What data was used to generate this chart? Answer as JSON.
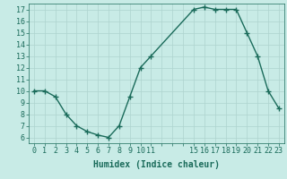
{
  "x": [
    0,
    1,
    2,
    3,
    4,
    5,
    6,
    7,
    8,
    9,
    10,
    11,
    15,
    16,
    17,
    18,
    19,
    20,
    21,
    22,
    23
  ],
  "y": [
    10,
    10,
    9.5,
    8,
    7,
    6.5,
    6.2,
    6,
    7,
    9.5,
    12,
    13,
    17,
    17.2,
    17,
    17,
    17,
    15,
    13,
    10,
    8.5
  ],
  "xlim": [
    -0.5,
    23.5
  ],
  "ylim": [
    5.5,
    17.5
  ],
  "xticks_all": [
    0,
    1,
    2,
    3,
    4,
    5,
    6,
    7,
    8,
    9,
    10,
    11,
    12,
    13,
    14,
    15,
    16,
    17,
    18,
    19,
    20,
    21,
    22,
    23
  ],
  "xtick_labels": [
    "0",
    "1",
    "2",
    "3",
    "4",
    "5",
    "6",
    "7",
    "8",
    "9",
    "10",
    "11",
    "",
    "",
    "",
    "15",
    "16",
    "17",
    "18",
    "19",
    "20",
    "21",
    "22",
    "23"
  ],
  "yticks": [
    6,
    7,
    8,
    9,
    10,
    11,
    12,
    13,
    14,
    15,
    16,
    17
  ],
  "xlabel": "Humidex (Indice chaleur)",
  "line_color": "#1a6b5a",
  "bg_color": "#c8ebe6",
  "grid_color": "#aed4ce",
  "marker": "+",
  "markersize": 4,
  "linewidth": 1.0,
  "xlabel_fontsize": 7,
  "tick_fontsize": 6
}
